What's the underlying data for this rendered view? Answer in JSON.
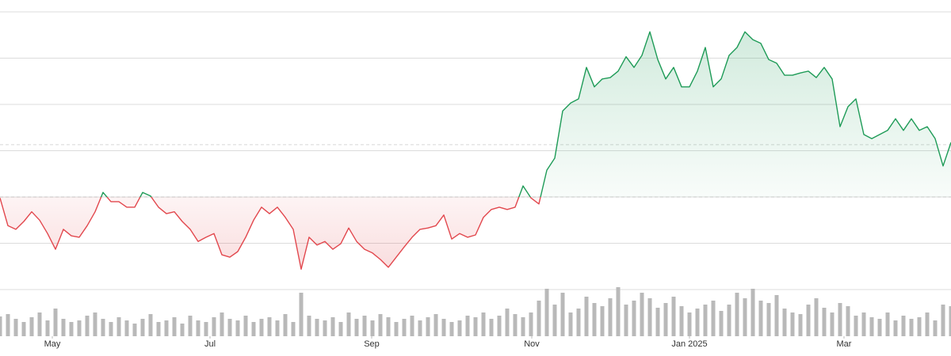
{
  "chart_data": {
    "type": "baseline-area",
    "xlim": [
      0,
      120
    ],
    "xticks": [
      {
        "value": 6.6,
        "label": "May"
      },
      {
        "value": 26.5,
        "label": "Jul"
      },
      {
        "value": 46.9,
        "label": "Sep"
      },
      {
        "value": 67.1,
        "label": "Nov"
      },
      {
        "value": 87.0,
        "label": "Jan 2025"
      },
      {
        "value": 106.5,
        "label": "Mar"
      }
    ],
    "ylim": [
      0,
      60
    ],
    "gridlines": [
      0,
      10,
      20,
      30,
      40,
      50,
      60
    ],
    "baseline": 20,
    "reference_line": 31.3,
    "up_color": "#1e9b57",
    "down_color": "#e2474d",
    "volume_color": "#b9b9b9",
    "volume_lim": [
      0,
      70
    ],
    "values": [
      19.8,
      13.8,
      13.0,
      14.7,
      16.8,
      15.0,
      12.1,
      8.7,
      13.0,
      11.6,
      11.3,
      13.8,
      16.8,
      21.0,
      19.0,
      19.0,
      17.8,
      17.8,
      21.0,
      20.2,
      17.8,
      16.4,
      16.8,
      14.7,
      13.0,
      10.4,
      11.3,
      12.1,
      7.5,
      7.0,
      8.2,
      11.3,
      15.0,
      17.8,
      16.4,
      17.8,
      15.6,
      13.0,
      4.4,
      11.3,
      9.6,
      10.4,
      8.7,
      9.9,
      13.3,
      10.4,
      8.7,
      7.9,
      6.5,
      4.8,
      7.0,
      9.2,
      11.3,
      13.0,
      13.3,
      13.8,
      16.1,
      10.9,
      12.1,
      11.3,
      11.8,
      15.6,
      17.3,
      17.8,
      17.3,
      17.8,
      22.4,
      19.8,
      18.5,
      25.8,
      28.4,
      38.6,
      40.3,
      41.2,
      48.0,
      43.8,
      45.5,
      45.8,
      47.2,
      50.3,
      48.0,
      50.6,
      55.7,
      49.7,
      45.5,
      48.0,
      43.8,
      43.8,
      47.2,
      52.3,
      43.8,
      45.5,
      50.6,
      52.3,
      55.7,
      54.0,
      53.2,
      49.7,
      48.9,
      46.3,
      46.3,
      46.8,
      47.2,
      45.8,
      48.0,
      45.5,
      35.2,
      39.5,
      41.2,
      33.5,
      32.6,
      33.5,
      34.4,
      36.9,
      34.4,
      36.9,
      34.4,
      35.2,
      32.6,
      26.7,
      31.8
    ],
    "volume": [
      25,
      28,
      22,
      18,
      24,
      30,
      20,
      35,
      22,
      18,
      20,
      26,
      30,
      22,
      18,
      24,
      20,
      16,
      22,
      28,
      18,
      20,
      24,
      16,
      26,
      20,
      18,
      24,
      30,
      22,
      20,
      26,
      18,
      22,
      24,
      20,
      28,
      18,
      55,
      26,
      22,
      20,
      24,
      18,
      30,
      22,
      26,
      20,
      28,
      24,
      18,
      22,
      26,
      20,
      24,
      28,
      22,
      18,
      20,
      26,
      24,
      30,
      22,
      26,
      35,
      28,
      24,
      30,
      45,
      60,
      40,
      55,
      30,
      35,
      50,
      42,
      38,
      48,
      62,
      40,
      45,
      55,
      48,
      36,
      42,
      50,
      38,
      30,
      35,
      40,
      45,
      32,
      40,
      55,
      48,
      60,
      45,
      42,
      52,
      35,
      30,
      28,
      40,
      48,
      36,
      30,
      42,
      38,
      26,
      30,
      24,
      22,
      30,
      20,
      26,
      22,
      24,
      30,
      20,
      40,
      38
    ]
  }
}
